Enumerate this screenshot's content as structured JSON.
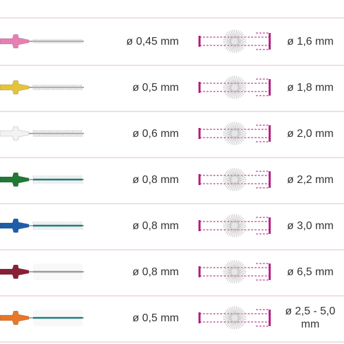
{
  "rows": [
    {
      "wire": "ø 0,45 mm",
      "brush": "ø 1,6 mm",
      "color": "#e77fb3"
    },
    {
      "wire": "ø 0,5 mm",
      "brush": "ø 1,8 mm",
      "color": "#e5c33a"
    },
    {
      "wire": "ø 0,6 mm",
      "brush": "ø 2,0 mm",
      "color": "#f2f2f2"
    },
    {
      "wire": "ø 0,8 mm",
      "brush": "ø 2,2 mm",
      "color": "#1f7a33"
    },
    {
      "wire": "ø 0,8 mm",
      "brush": "ø 3,0 mm",
      "color": "#1e5ea8"
    },
    {
      "wire": "ø 0,8 mm",
      "brush": "ø 6,5 mm",
      "color": "#8a1e35"
    },
    {
      "wire": "ø 0,5 mm",
      "brush": "ø 2,5 - 5,0 mm",
      "color": "#e8772a"
    }
  ]
}
